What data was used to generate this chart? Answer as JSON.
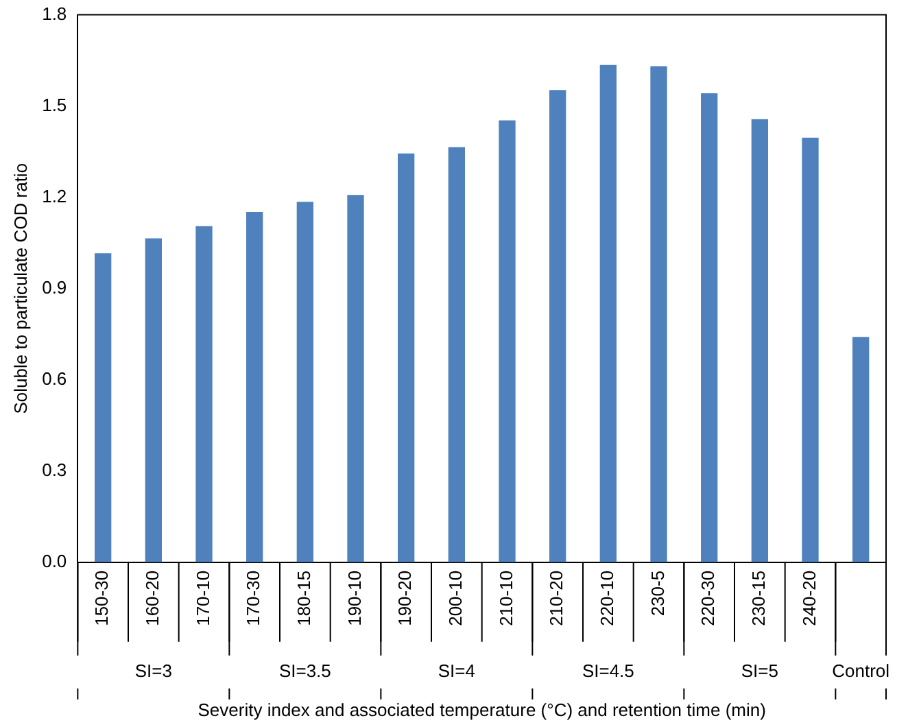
{
  "chart_data": {
    "type": "bar",
    "xlabel": "Severity index and associated temperature (°C) and retention time (min)",
    "ylabel": "Soluble to particulate COD ratio",
    "categories": [
      "150-30",
      "160-20",
      "170-10",
      "170-30",
      "180-15",
      "190-10",
      "190-20",
      "200-10",
      "210-10",
      "210-20",
      "220-10",
      "230-5",
      "220-30",
      "230-15",
      "240-20",
      null
    ],
    "values": [
      1.016,
      1.065,
      1.105,
      1.152,
      1.185,
      1.208,
      1.344,
      1.365,
      1.453,
      1.553,
      1.635,
      1.631,
      1.542,
      1.457,
      1.396,
      0.741
    ],
    "color": "#4f81bd",
    "ylim": [
      0,
      1.8
    ],
    "yticks": [
      {
        "value": 0,
        "label": "0.0"
      },
      {
        "value": 0.3,
        "label": "0.3"
      },
      {
        "value": 0.6,
        "label": "0.6"
      },
      {
        "value": 0.9,
        "label": "0.9"
      },
      {
        "value": 1.2,
        "label": "1.2"
      },
      {
        "value": 1.5,
        "label": "1.5"
      },
      {
        "value": 1.8,
        "label": "1.8"
      }
    ],
    "grid": false,
    "legend": false,
    "annotations": [
      "SI=3",
      "SI=3.5",
      "SI=4",
      "SI=4.5",
      "SI=5",
      "Control"
    ]
  }
}
